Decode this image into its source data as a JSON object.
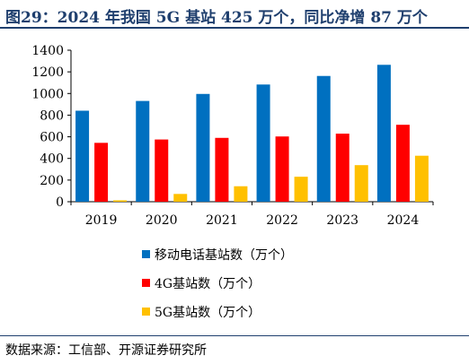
{
  "title": "图29：2024 年我国 5G 基站 425 万个，同比净增 87 万个",
  "source": "数据来源：工信部、开源证券研究所",
  "chart_data": {
    "type": "bar",
    "categories": [
      "2019",
      "2020",
      "2021",
      "2022",
      "2023",
      "2024"
    ],
    "series": [
      {
        "name": "移动电话基站数（万个）",
        "color": "#0070c0",
        "values": [
          841,
          931,
          996,
          1083,
          1162,
          1265
        ]
      },
      {
        "name": "4G基站数（万个）",
        "color": "#ff0000",
        "values": [
          544,
          575,
          590,
          603,
          629,
          711
        ]
      },
      {
        "name": "5G基站数（万个）",
        "color": "#ffc000",
        "values": [
          13,
          72,
          143,
          231,
          338,
          425
        ]
      }
    ],
    "ylim": [
      0,
      1400
    ],
    "yticks": [
      0,
      200,
      400,
      600,
      800,
      1000,
      1200,
      1400
    ],
    "grid": false,
    "legend": "bottom"
  }
}
